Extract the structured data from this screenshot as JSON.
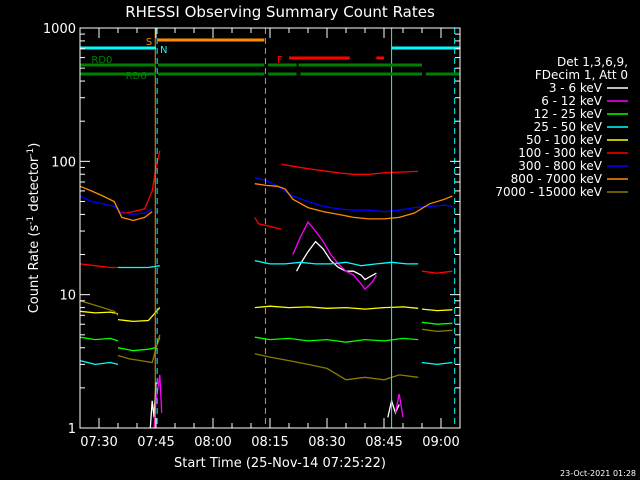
{
  "chart_data": {
    "type": "line",
    "title": "RHESSI Observing Summary Count Rates",
    "xlabel": "Start Time (25-Nov-14 07:25:22)",
    "ylabel_main": "Count Rate (s",
    "ylabel_sup1": "-1",
    "ylabel_mid": " detector",
    "ylabel_sup2": "-1",
    "ylabel_end": ")",
    "x_unit": "minutes since 07:25",
    "xlim": [
      0,
      100
    ],
    "ylim": [
      1,
      1000
    ],
    "yscale": "log",
    "x_ticks": [
      {
        "value": 5,
        "label": "07:30"
      },
      {
        "value": 20,
        "label": "07:45"
      },
      {
        "value": 35,
        "label": "08:00"
      },
      {
        "value": 50,
        "label": "08:15"
      },
      {
        "value": 65,
        "label": "08:30"
      },
      {
        "value": 80,
        "label": "08:45"
      },
      {
        "value": 95,
        "label": "09:00"
      }
    ],
    "y_ticks": [
      {
        "value": 1,
        "label": "1"
      },
      {
        "value": 10,
        "label": "10"
      },
      {
        "value": 100,
        "label": "100"
      },
      {
        "value": 1000,
        "label": "1000"
      }
    ],
    "legend_header": [
      "Det 1,3,6,9,",
      "FDecim 1, Att 0"
    ],
    "series": [
      {
        "name": "3 - 6 keV",
        "color": "#ffffff",
        "segments": [
          [
            [
              18.5,
              1
            ],
            [
              19,
              1.6
            ],
            [
              19.5,
              1.2
            ],
            [
              20,
              2.2
            ]
          ],
          [
            [
              57,
              15
            ],
            [
              58,
              17
            ],
            [
              60,
              21
            ],
            [
              62,
              25
            ],
            [
              64,
              22
            ],
            [
              66,
              18
            ],
            [
              68,
              16
            ],
            [
              70,
              15
            ],
            [
              72,
              15
            ],
            [
              74,
              14
            ],
            [
              75,
              13
            ],
            [
              77,
              14
            ],
            [
              78,
              14.5
            ]
          ],
          [
            [
              81,
              1.2
            ],
            [
              82,
              1.6
            ],
            [
              83,
              1.3
            ],
            [
              84,
              1.5
            ]
          ]
        ]
      },
      {
        "name": "6 - 12 keV",
        "color": "#ff00ff",
        "segments": [
          [
            [
              19.5,
              1
            ],
            [
              20,
              1.6
            ],
            [
              21,
              2.5
            ],
            [
              21.5,
              1.3
            ]
          ],
          [
            [
              56,
              20
            ],
            [
              58,
              27
            ],
            [
              60,
              35
            ],
            [
              62,
              30
            ],
            [
              64,
              25
            ],
            [
              66,
              20
            ],
            [
              68,
              17
            ],
            [
              70,
              15
            ],
            [
              72,
              14
            ],
            [
              74,
              12
            ],
            [
              75,
              11
            ],
            [
              77,
              12.5
            ],
            [
              78,
              14
            ]
          ],
          [
            [
              83,
              1.3
            ],
            [
              84,
              1.8
            ],
            [
              85,
              1.2
            ]
          ]
        ]
      },
      {
        "name": "12 - 25 keV",
        "color": "#00ff00",
        "segments": [
          [
            [
              0,
              4.8
            ],
            [
              4,
              4.6
            ],
            [
              8,
              4.7
            ],
            [
              10,
              4.5
            ]
          ],
          [
            [
              10,
              4
            ],
            [
              14,
              3.8
            ],
            [
              18,
              3.9
            ],
            [
              20,
              4
            ],
            [
              21,
              4.8
            ]
          ],
          [
            [
              46,
              4.8
            ],
            [
              50,
              4.6
            ],
            [
              55,
              4.7
            ],
            [
              60,
              4.5
            ],
            [
              65,
              4.6
            ],
            [
              70,
              4.4
            ],
            [
              75,
              4.6
            ],
            [
              80,
              4.5
            ],
            [
              85,
              4.7
            ],
            [
              89,
              4.6
            ]
          ],
          [
            [
              90,
              6.2
            ],
            [
              94,
              6
            ],
            [
              98,
              6.1
            ]
          ]
        ]
      },
      {
        "name": "25 - 50 keV",
        "color": "#00ffff",
        "segments": [
          [
            [
              0,
              3.2
            ],
            [
              4,
              3
            ],
            [
              8,
              3.1
            ],
            [
              10,
              3
            ]
          ],
          [
            [
              10,
              16
            ],
            [
              14,
              16
            ],
            [
              18,
              16
            ],
            [
              21,
              16.5
            ]
          ],
          [
            [
              46,
              18
            ],
            [
              48,
              17.5
            ],
            [
              50,
              17
            ],
            [
              54,
              17
            ],
            [
              58,
              17.5
            ],
            [
              62,
              17
            ],
            [
              66,
              17
            ],
            [
              70,
              17.5
            ],
            [
              74,
              16.5
            ],
            [
              78,
              17
            ],
            [
              82,
              17.5
            ],
            [
              86,
              17
            ],
            [
              89,
              17
            ]
          ],
          [
            [
              90,
              3.1
            ],
            [
              94,
              3
            ],
            [
              98,
              3.1
            ]
          ]
        ]
      },
      {
        "name": "50 - 100 keV",
        "color": "#ffff00",
        "segments": [
          [
            [
              0,
              7.5
            ],
            [
              4,
              7.3
            ],
            [
              8,
              7.4
            ],
            [
              10,
              7.2
            ]
          ],
          [
            [
              10,
              6.5
            ],
            [
              14,
              6.3
            ],
            [
              18,
              6.4
            ],
            [
              21,
              8
            ]
          ],
          [
            [
              46,
              8
            ],
            [
              50,
              8.2
            ],
            [
              55,
              8
            ],
            [
              60,
              8.1
            ],
            [
              65,
              7.9
            ],
            [
              70,
              8
            ],
            [
              75,
              7.8
            ],
            [
              80,
              8
            ],
            [
              85,
              8.1
            ],
            [
              89,
              7.9
            ]
          ],
          [
            [
              90,
              7.8
            ],
            [
              94,
              7.6
            ],
            [
              98,
              7.7
            ]
          ]
        ]
      },
      {
        "name": "100 - 300 keV",
        "color": "#ff0000",
        "segments": [
          [
            [
              0,
              17
            ],
            [
              4,
              16.5
            ],
            [
              8,
              16
            ],
            [
              10,
              16
            ]
          ],
          [
            [
              10,
              42
            ],
            [
              12,
              41
            ],
            [
              14,
              42
            ],
            [
              17,
              44
            ],
            [
              19,
              60
            ],
            [
              20,
              90
            ],
            [
              21,
              120
            ]
          ],
          [
            [
              46,
              38
            ],
            [
              47,
              34
            ],
            [
              49,
              33
            ],
            [
              51,
              32
            ],
            [
              53,
              31
            ]
          ],
          [
            [
              53,
              95
            ],
            [
              56,
              92
            ],
            [
              60,
              88
            ],
            [
              64,
              85
            ],
            [
              68,
              82
            ],
            [
              72,
              80
            ],
            [
              76,
              80
            ],
            [
              80,
              82
            ],
            [
              84,
              83
            ],
            [
              89,
              84
            ]
          ],
          [
            [
              90,
              15
            ],
            [
              94,
              14.5
            ],
            [
              98,
              15
            ]
          ]
        ]
      },
      {
        "name": "300 - 800 keV",
        "color": "#0000ff",
        "segments": [
          [
            [
              0,
              55
            ],
            [
              3,
              50
            ],
            [
              6,
              48
            ],
            [
              9,
              46
            ],
            [
              11,
              41
            ],
            [
              14,
              40
            ],
            [
              17,
              41
            ],
            [
              19,
              44
            ]
          ],
          [
            [
              46,
              75
            ],
            [
              49,
              72
            ],
            [
              52,
              65
            ],
            [
              56,
              55
            ],
            [
              60,
              50
            ],
            [
              64,
              46
            ],
            [
              68,
              44
            ],
            [
              72,
              43
            ],
            [
              76,
              43
            ],
            [
              80,
              42
            ],
            [
              84,
              43
            ],
            [
              88,
              45
            ],
            [
              92,
              46
            ],
            [
              96,
              47
            ],
            [
              98,
              46
            ]
          ]
        ]
      },
      {
        "name": "800 - 7000 keV",
        "color": "#ff8c00",
        "segments": [
          [
            [
              0,
              65
            ],
            [
              3,
              60
            ],
            [
              6,
              55
            ],
            [
              9,
              50
            ],
            [
              11,
              38
            ],
            [
              14,
              36
            ],
            [
              17,
              38
            ],
            [
              19,
              42
            ]
          ],
          [
            [
              46,
              68
            ],
            [
              49,
              66
            ],
            [
              52,
              65
            ],
            [
              54,
              62
            ],
            [
              56,
              52
            ],
            [
              60,
              45
            ],
            [
              64,
              42
            ],
            [
              68,
              40
            ],
            [
              72,
              38
            ],
            [
              76,
              37
            ],
            [
              80,
              37
            ],
            [
              84,
              38
            ],
            [
              88,
              41
            ],
            [
              92,
              48
            ],
            [
              96,
              52
            ],
            [
              98,
              55
            ]
          ]
        ]
      },
      {
        "name": "7000 - 15000 keV",
        "color": "#8b7a00",
        "segments": [
          [
            [
              0,
              9
            ],
            [
              3,
              8.5
            ],
            [
              6,
              8
            ],
            [
              9,
              7.5
            ],
            [
              10,
              7
            ]
          ],
          [
            [
              10,
              3.5
            ],
            [
              13,
              3.3
            ],
            [
              16,
              3.2
            ],
            [
              19,
              3.1
            ],
            [
              21,
              5
            ]
          ],
          [
            [
              46,
              3.6
            ],
            [
              50,
              3.4
            ],
            [
              55,
              3.2
            ],
            [
              60,
              3
            ],
            [
              65,
              2.8
            ],
            [
              70,
              2.3
            ],
            [
              75,
              2.4
            ],
            [
              80,
              2.3
            ],
            [
              84,
              2.5
            ],
            [
              89,
              2.4
            ]
          ],
          [
            [
              90,
              5.5
            ],
            [
              94,
              5.3
            ],
            [
              98,
              5.4
            ]
          ]
        ]
      }
    ],
    "flag_bars": [
      {
        "label": "S",
        "color": "#ff8c00",
        "segments": [
          [
            20.5,
            48.5
          ]
        ]
      },
      {
        "label": "N",
        "color": "#00ffff",
        "segments": [
          [
            0,
            20
          ]
        ]
      },
      {
        "label": "",
        "color": "#00ffff",
        "segments": [
          [
            82,
            100
          ]
        ]
      },
      {
        "label": "F",
        "color": "#ff0000",
        "segments": [
          [
            55,
            71
          ],
          [
            78,
            80
          ]
        ]
      },
      {
        "label": "RD0",
        "color": "#008000",
        "segments": [
          [
            0,
            20
          ],
          [
            20.5,
            48.5
          ],
          [
            49.5,
            57
          ],
          [
            57.5,
            90
          ]
        ]
      },
      {
        "label": "RD6",
        "color": "#008000",
        "segments": [
          [
            0,
            20
          ],
          [
            20.5,
            48.5
          ],
          [
            49.5,
            57
          ],
          [
            58,
            90
          ],
          [
            91,
            100
          ]
        ]
      }
    ],
    "vlines": [
      {
        "x": 19.8,
        "color": "#ff8c00",
        "dashed": false
      },
      {
        "x": 20.3,
        "color": "#00ffff",
        "dashed": true
      },
      {
        "x": 48.8,
        "color": "#ff8c00",
        "dashed": true
      },
      {
        "x": 82,
        "color": "#00ffff",
        "dashed": false
      },
      {
        "x": 98.6,
        "color": "#00ffff",
        "dashed": true
      }
    ],
    "timestamp": "23-Oct-2021 01:28"
  }
}
